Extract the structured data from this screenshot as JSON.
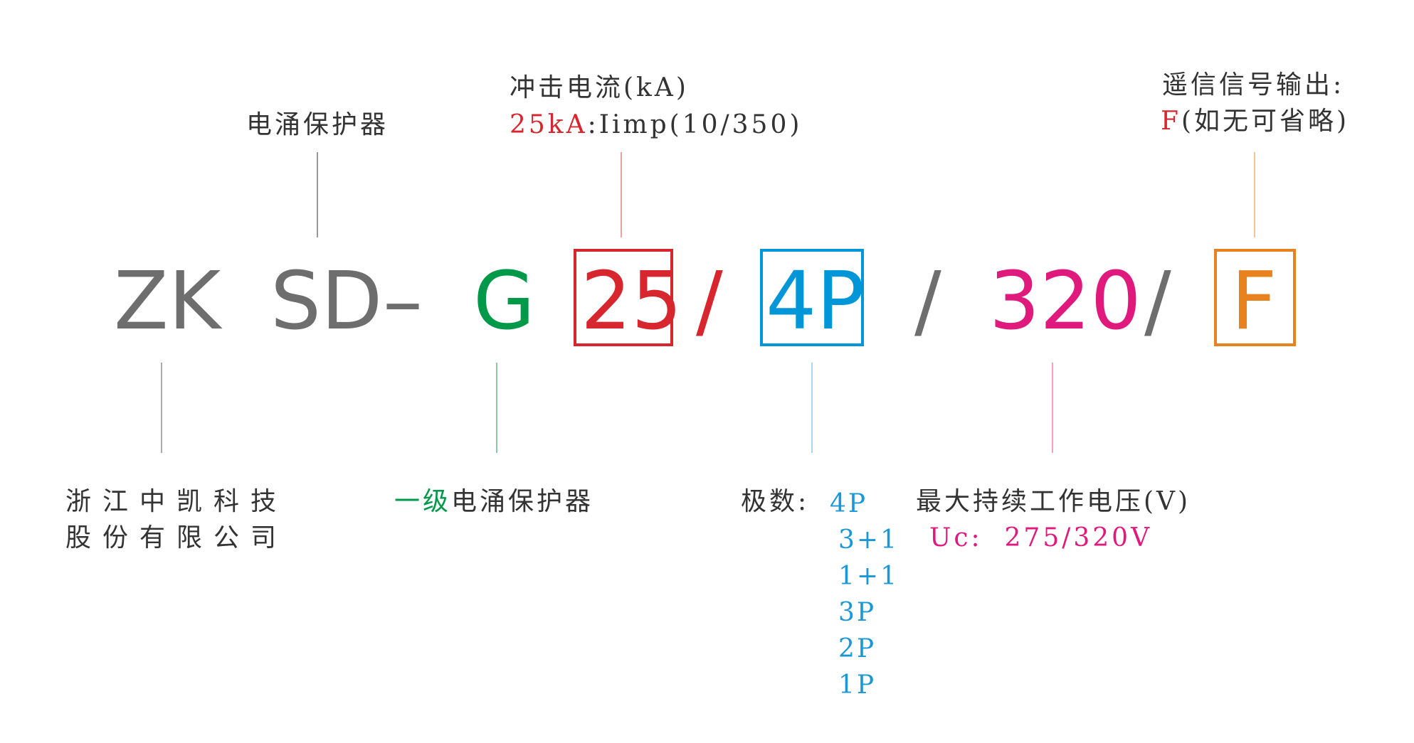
{
  "colors": {
    "gray": "#6e6e6e",
    "green": "#00994a",
    "red": "#d7262d",
    "blue": "#0096d8",
    "magenta": "#e0197d",
    "orange": "#e8821e",
    "text": "#333333"
  },
  "code": {
    "zk": "ZK",
    "sd": "SD",
    "dash": "–",
    "g": "G",
    "current": "25",
    "slash": "/",
    "poles": "4P",
    "voltage": "320",
    "remote": "F"
  },
  "top_labels": {
    "spd": "电涌保护器",
    "current_title": "冲击电流(kA)",
    "current_value": "25kA",
    "current_desc": ":Iimp(10/350)",
    "remote_title": "遥信信号输出:",
    "remote_value": "F",
    "remote_desc": "(如无可省略)"
  },
  "bottom_labels": {
    "company_line1": "浙江中凯科技",
    "company_line2": "股份有限公司",
    "level_prefix": "一级",
    "level_suffix": "电涌保护器",
    "poles_title": "极数:",
    "poles_options": [
      "4P",
      "3+1",
      "1+1",
      "3P",
      "2P",
      "1P"
    ],
    "voltage_title": "最大持续工作电压(V)",
    "voltage_prefix": "Uc:",
    "voltage_value": "275/320V"
  }
}
